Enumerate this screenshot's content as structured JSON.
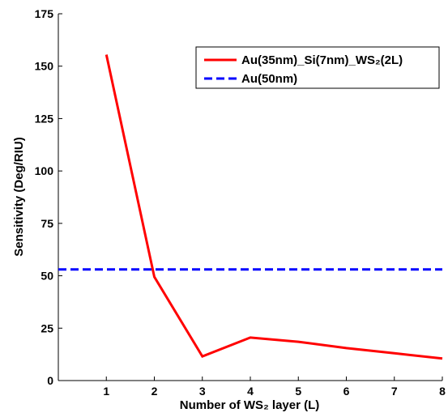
{
  "chart_data": {
    "type": "line",
    "title": "",
    "xlabel": "Number of WS₂ layer (L)",
    "ylabel": "Sensitivity (Deg/RIU)",
    "xlim": [
      0,
      8
    ],
    "ylim": [
      0,
      175
    ],
    "xticks": [
      "1",
      "2",
      "3",
      "4",
      "5",
      "6",
      "7",
      "8"
    ],
    "yticks": [
      "0",
      "25",
      "50",
      "75",
      "100",
      "125",
      "150",
      "175"
    ],
    "grid": false,
    "legend_position": "top-right",
    "series": [
      {
        "name": "Au(35nm)_Si(7nm)_WS₂(2L)",
        "color": "#ff0000",
        "style": "solid",
        "x": [
          1,
          2,
          3,
          4,
          5,
          6,
          7,
          8
        ],
        "y": [
          155.5,
          49.5,
          11.5,
          20.5,
          18.5,
          15.5,
          13,
          10.5
        ]
      },
      {
        "name": "Au(50nm)",
        "color": "#0000ff",
        "style": "dashed",
        "x": [
          0,
          8
        ],
        "y": [
          53,
          53
        ]
      }
    ]
  }
}
